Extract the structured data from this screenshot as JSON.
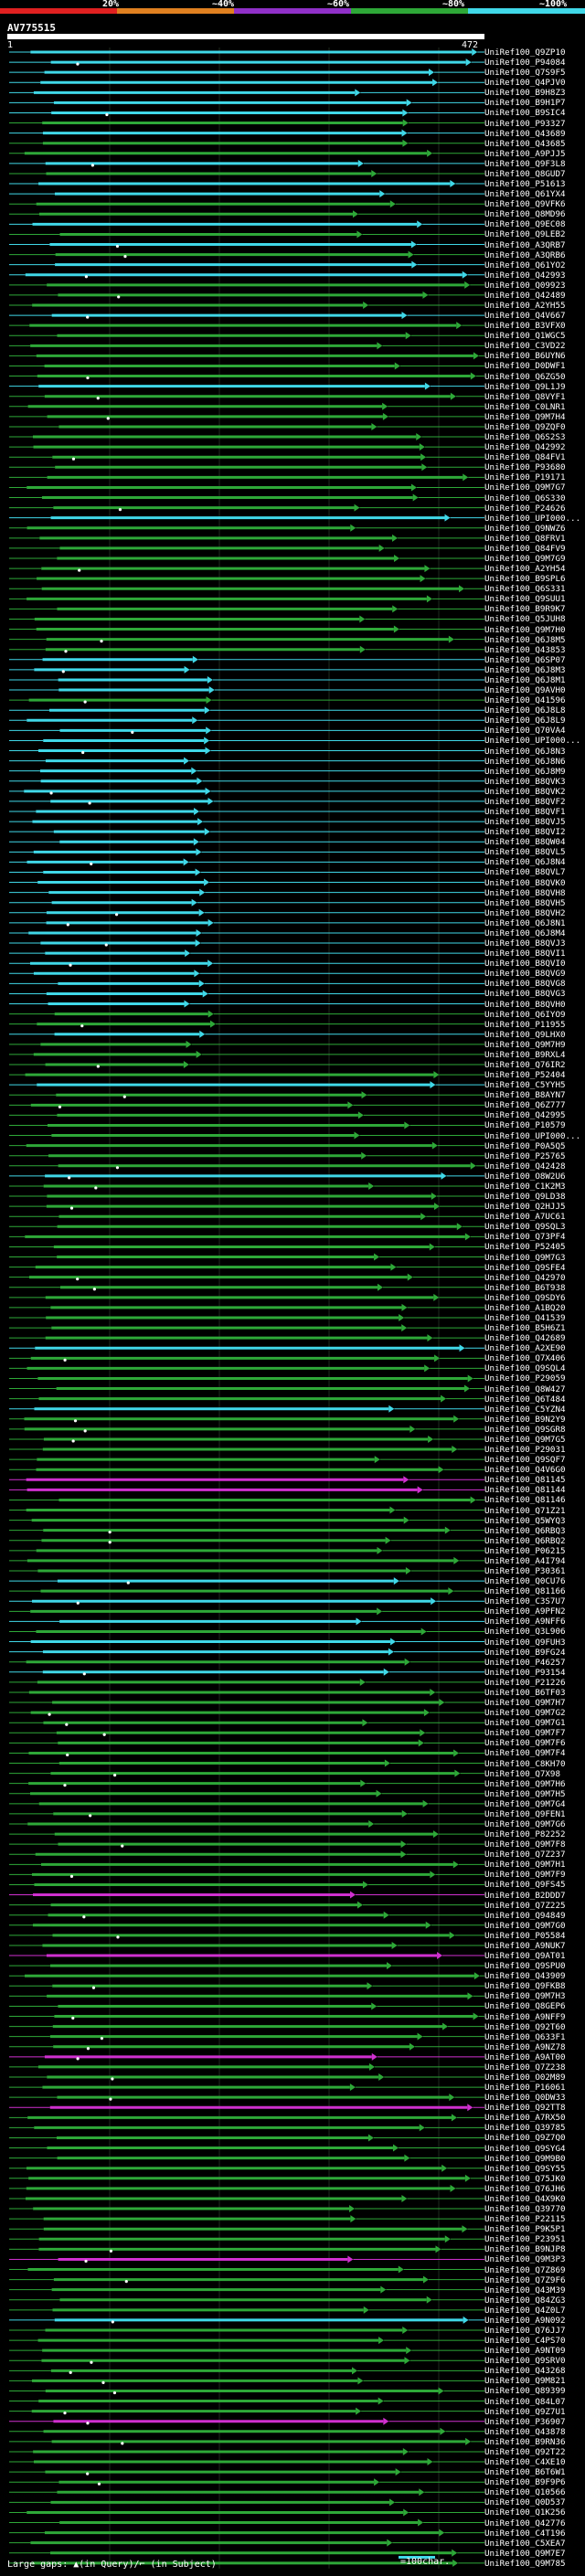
{
  "colors": {
    "background": "#000000",
    "bin_red": "#e02020",
    "bin_orange": "#e08020",
    "bin_purple": "#9030c8",
    "bin_green": "#2ea838",
    "bin_cyan": "#40d8e8",
    "query_bar": "#ffffff",
    "gap_marker": "#ffffff"
  },
  "identity_scale": [
    "20%",
    "~40%",
    "~60%",
    "~80%",
    "~100%"
  ],
  "query": {
    "id": "AV775515",
    "start": "1",
    "end": "472"
  },
  "hits": [
    {
      "label": "UniRef100_Q9ZP10",
      "color": "cyan"
    },
    {
      "label": "UniRef100_P94084",
      "color": "cyan"
    },
    {
      "label": "UniRef100_Q7S9F5",
      "color": "cyan"
    },
    {
      "label": "UniRef100_Q4PJV0",
      "color": "cyan"
    },
    {
      "label": "UniRef100_B9H8Z3",
      "color": "cyan"
    },
    {
      "label": "UniRef100_B9H1P7",
      "color": "cyan"
    },
    {
      "label": "UniRef100_B9SIC4",
      "color": "cyan"
    },
    {
      "label": "UniRef100_P93327",
      "color": "green"
    },
    {
      "label": "UniRef100_Q43689",
      "color": "cyan"
    },
    {
      "label": "UniRef100_Q43685",
      "color": "green"
    },
    {
      "label": "UniRef100_A9PJJ5",
      "color": "green"
    },
    {
      "label": "UniRef100_Q9F3L8",
      "color": "cyan"
    },
    {
      "label": "UniRef100_Q8GUD7",
      "color": "green"
    },
    {
      "label": "UniRef100_P51613",
      "color": "cyan"
    },
    {
      "label": "UniRef100_Q61YX4",
      "color": "cyan"
    },
    {
      "label": "UniRef100_Q9VFK6",
      "color": "green"
    },
    {
      "label": "UniRef100_Q8MD96",
      "color": "green"
    },
    {
      "label": "UniRef100_Q9EC08",
      "color": "cyan"
    },
    {
      "label": "UniRef100_Q9LEB2",
      "color": "green"
    },
    {
      "label": "UniRef100_A3QRB7",
      "color": "cyan"
    },
    {
      "label": "UniRef100_A3QRB6",
      "color": "green"
    },
    {
      "label": "UniRef100_Q61YO2",
      "color": "cyan"
    },
    {
      "label": "UniRef100_Q42993",
      "color": "cyan"
    },
    {
      "label": "UniRef100_Q09923",
      "color": "green"
    },
    {
      "label": "UniRef100_Q42489",
      "color": "green"
    },
    {
      "label": "UniRef100_A2YH55",
      "color": "green"
    },
    {
      "label": "UniRef100_Q4V667",
      "color": "cyan"
    },
    {
      "label": "UniRef100_B3VFX0",
      "color": "green"
    },
    {
      "label": "UniRef100_Q1WGC5",
      "color": "green"
    },
    {
      "label": "UniRef100_C3VD22",
      "color": "green"
    },
    {
      "label": "UniRef100_B6UYN6",
      "color": "green"
    },
    {
      "label": "UniRef100_D0DWF1",
      "color": "green"
    },
    {
      "label": "UniRef100_Q6ZG50",
      "color": "green"
    },
    {
      "label": "UniRef100_Q9L1J9",
      "color": "cyan"
    },
    {
      "label": "UniRef100_Q8VYF1",
      "color": "green"
    },
    {
      "label": "UniRef100_C0LNR1",
      "color": "green"
    },
    {
      "label": "UniRef100_Q9M7H4",
      "color": "green"
    },
    {
      "label": "UniRef100_Q9ZQF0",
      "color": "green"
    },
    {
      "label": "UniRef100_Q6S2S3",
      "color": "green"
    },
    {
      "label": "UniRef100_Q42992",
      "color": "green"
    },
    {
      "label": "UniRef100_Q84FV1",
      "color": "green"
    },
    {
      "label": "UniRef100_P93680",
      "color": "green"
    },
    {
      "label": "UniRef100_P19171",
      "color": "green"
    },
    {
      "label": "UniRef100_Q9M7G7",
      "color": "green"
    },
    {
      "label": "UniRef100_Q6S330",
      "color": "green"
    },
    {
      "label": "UniRef100_P24626",
      "color": "green"
    },
    {
      "label": "UniRef100_UPI000...",
      "color": "cyan"
    },
    {
      "label": "UniRef100_Q9NWZ6",
      "color": "green"
    },
    {
      "label": "UniRef100_Q8FRV1",
      "color": "green"
    },
    {
      "label": "UniRef100_Q84FV9",
      "color": "green"
    },
    {
      "label": "UniRef100_Q9M7G9",
      "color": "green"
    },
    {
      "label": "UniRef100_A2YH54",
      "color": "green"
    },
    {
      "label": "UniRef100_B9SPL6",
      "color": "green"
    },
    {
      "label": "UniRef100_Q6S331",
      "color": "green"
    },
    {
      "label": "UniRef100_Q9SUU1",
      "color": "green"
    },
    {
      "label": "UniRef100_B9R9K7",
      "color": "green"
    },
    {
      "label": "UniRef100_Q5JUH8",
      "color": "green"
    },
    {
      "label": "UniRef100_Q9M7H0",
      "color": "green"
    },
    {
      "label": "UniRef100_Q6J8M5",
      "color": "green"
    },
    {
      "label": "UniRef100_Q43853",
      "color": "green"
    },
    {
      "label": "UniRef100_Q6SP07",
      "color": "cyan"
    },
    {
      "label": "UniRef100_Q6J8M3",
      "color": "cyan"
    },
    {
      "label": "UniRef100_Q6J8M1",
      "color": "cyan"
    },
    {
      "label": "UniRef100_Q9AVH0",
      "color": "cyan"
    },
    {
      "label": "UniRef100_Q41596",
      "color": "green"
    },
    {
      "label": "UniRef100_Q6J8L8",
      "color": "cyan"
    },
    {
      "label": "UniRef100_Q6J8L9",
      "color": "cyan"
    },
    {
      "label": "UniRef100_Q70VA4",
      "color": "cyan"
    },
    {
      "label": "UniRef100_UPI000...",
      "color": "cyan"
    },
    {
      "label": "UniRef100_Q6J8N3",
      "color": "cyan"
    },
    {
      "label": "UniRef100_Q6J8N6",
      "color": "cyan"
    },
    {
      "label": "UniRef100_Q6J8M9",
      "color": "cyan"
    },
    {
      "label": "UniRef100_B8QVK3",
      "color": "cyan"
    },
    {
      "label": "UniRef100_B8QVK2",
      "color": "cyan"
    },
    {
      "label": "UniRef100_B8QVF2",
      "color": "cyan"
    },
    {
      "label": "UniRef100_B8QVF1",
      "color": "cyan"
    },
    {
      "label": "UniRef100_B8QVJ5",
      "color": "cyan"
    },
    {
      "label": "UniRef100_B8QVI2",
      "color": "cyan"
    },
    {
      "label": "UniRef100_B8QW04",
      "color": "cyan"
    },
    {
      "label": "UniRef100_B8QVL5",
      "color": "cyan"
    },
    {
      "label": "UniRef100_Q6J8N4",
      "color": "cyan"
    },
    {
      "label": "UniRef100_B8QVL7",
      "color": "cyan"
    },
    {
      "label": "UniRef100_B8QVK0",
      "color": "cyan"
    },
    {
      "label": "UniRef100_B8QVH8",
      "color": "cyan"
    },
    {
      "label": "UniRef100_B8QVH5",
      "color": "cyan"
    },
    {
      "label": "UniRef100_B8QVH2",
      "color": "cyan"
    },
    {
      "label": "UniRef100_Q6J8N1",
      "color": "cyan"
    },
    {
      "label": "UniRef100_Q6J8M4",
      "color": "cyan"
    },
    {
      "label": "UniRef100_B8QVJ3",
      "color": "cyan"
    },
    {
      "label": "UniRef100_B8QVI1",
      "color": "cyan"
    },
    {
      "label": "UniRef100_B8QVI0",
      "color": "cyan"
    },
    {
      "label": "UniRef100_B8QVG9",
      "color": "cyan"
    },
    {
      "label": "UniRef100_B8QVG8",
      "color": "cyan"
    },
    {
      "label": "UniRef100_B8QVG3",
      "color": "cyan"
    },
    {
      "label": "UniRef100_B8QVH0",
      "color": "cyan"
    },
    {
      "label": "UniRef100_Q6IYO9",
      "color": "green"
    },
    {
      "label": "UniRef100_P11955",
      "color": "green"
    },
    {
      "label": "UniRef100_Q9LHX0",
      "color": "cyan"
    },
    {
      "label": "UniRef100_Q9M7H9",
      "color": "green"
    },
    {
      "label": "UniRef100_B9RXL4",
      "color": "green"
    },
    {
      "label": "UniRef100_Q76IR2",
      "color": "green"
    },
    {
      "label": "UniRef100_P52404",
      "color": "green"
    },
    {
      "label": "UniRef100_C5YYH5",
      "color": "cyan"
    },
    {
      "label": "UniRef100_B8AYN7",
      "color": "green"
    },
    {
      "label": "UniRef100_Q6Z777",
      "color": "green"
    },
    {
      "label": "UniRef100_Q42995",
      "color": "green"
    },
    {
      "label": "UniRef100_P10579",
      "color": "green"
    },
    {
      "label": "UniRef100_UPI000...",
      "color": "green"
    },
    {
      "label": "UniRef100_P0A5Q5",
      "color": "green"
    },
    {
      "label": "UniRef100_P25765",
      "color": "green"
    },
    {
      "label": "UniRef100_Q42428",
      "color": "green"
    },
    {
      "label": "UniRef100_O8W2U6",
      "color": "cyan"
    },
    {
      "label": "UniRef100_C1K2M3",
      "color": "green"
    },
    {
      "label": "UniRef100_Q9LD38",
      "color": "green"
    },
    {
      "label": "UniRef100_Q2HJJ5",
      "color": "green"
    },
    {
      "label": "UniRef100_A7UC61",
      "color": "green"
    },
    {
      "label": "UniRef100_Q9SQL3",
      "color": "green"
    },
    {
      "label": "UniRef100_Q73PF4",
      "color": "green"
    },
    {
      "label": "UniRef100_P52405",
      "color": "green"
    },
    {
      "label": "UniRef100_Q9M7G3",
      "color": "green"
    },
    {
      "label": "UniRef100_Q9SFE4",
      "color": "green"
    },
    {
      "label": "UniRef100_Q42970",
      "color": "green"
    },
    {
      "label": "UniRef100_B6T938",
      "color": "green"
    },
    {
      "label": "UniRef100_Q9SDY6",
      "color": "green"
    },
    {
      "label": "UniRef100_A1BQ20",
      "color": "green"
    },
    {
      "label": "UniRef100_Q41539",
      "color": "green"
    },
    {
      "label": "UniRef100_B5H6Z1",
      "color": "green"
    },
    {
      "label": "UniRef100_Q42689",
      "color": "green"
    },
    {
      "label": "UniRef100_A2XE90",
      "color": "cyan"
    },
    {
      "label": "UniRef100_Q7X406",
      "color": "green"
    },
    {
      "label": "UniRef100_Q9SQL4",
      "color": "green"
    },
    {
      "label": "UniRef100_P29059",
      "color": "green"
    },
    {
      "label": "UniRef100_Q8W427",
      "color": "green"
    },
    {
      "label": "UniRef100_Q6T484",
      "color": "green"
    },
    {
      "label": "UniRef100_C5YZN4",
      "color": "cyan"
    },
    {
      "label": "UniRef100_B9N2Y9",
      "color": "green"
    },
    {
      "label": "UniRef100_Q9SGR8",
      "color": "green"
    },
    {
      "label": "UniRef100_Q9M7G5",
      "color": "green"
    },
    {
      "label": "UniRef100_P29031",
      "color": "green"
    },
    {
      "label": "UniRef100_Q9SQF7",
      "color": "green"
    },
    {
      "label": "UniRef100_Q4V6G0",
      "color": "green"
    },
    {
      "label": "UniRef100_Q81145",
      "color": "magenta"
    },
    {
      "label": "UniRef100_Q81144",
      "color": "magenta"
    },
    {
      "label": "UniRef100_Q81146",
      "color": "green"
    },
    {
      "label": "UniRef100_Q71Z21",
      "color": "green"
    },
    {
      "label": "UniRef100_Q5WYQ3",
      "color": "green"
    },
    {
      "label": "UniRef100_Q6RBQ3",
      "color": "green"
    },
    {
      "label": "UniRef100_Q6RBQ2",
      "color": "green"
    },
    {
      "label": "UniRef100_P06215",
      "color": "green"
    },
    {
      "label": "UniRef100_A4I794",
      "color": "green"
    },
    {
      "label": "UniRef100_P30361",
      "color": "green"
    },
    {
      "label": "UniRef100_Q0CU76",
      "color": "cyan"
    },
    {
      "label": "UniRef100_Q81166",
      "color": "green"
    },
    {
      "label": "UniRef100_C3S7U7",
      "color": "cyan"
    },
    {
      "label": "UniRef100_A9PFN2",
      "color": "green"
    },
    {
      "label": "UniRef100_A9NFF6",
      "color": "cyan"
    },
    {
      "label": "UniRef100_Q3L906",
      "color": "green"
    },
    {
      "label": "UniRef100_Q9FUH3",
      "color": "cyan"
    },
    {
      "label": "UniRef100_B9FG24",
      "color": "cyan"
    },
    {
      "label": "UniRef100_P46257",
      "color": "green"
    },
    {
      "label": "UniRef100_P93154",
      "color": "cyan"
    },
    {
      "label": "UniRef100_P21226",
      "color": "green"
    },
    {
      "label": "UniRef100_B6TF03",
      "color": "green"
    },
    {
      "label": "UniRef100_Q9M7H7",
      "color": "green"
    },
    {
      "label": "UniRef100_Q9M7G2",
      "color": "green"
    },
    {
      "label": "UniRef100_Q9M7G1",
      "color": "green"
    },
    {
      "label": "UniRef100_Q9M7F7",
      "color": "green"
    },
    {
      "label": "UniRef100_Q9M7F6",
      "color": "green"
    },
    {
      "label": "UniRef100_Q9M7F4",
      "color": "green"
    },
    {
      "label": "UniRef100_C8KH70",
      "color": "green"
    },
    {
      "label": "UniRef100_Q7X98",
      "color": "green"
    },
    {
      "label": "UniRef100_Q9M7H6",
      "color": "green"
    },
    {
      "label": "UniRef100_Q9M7H5",
      "color": "green"
    },
    {
      "label": "UniRef100_Q9M7G4",
      "color": "green"
    },
    {
      "label": "UniRef100_Q9FEN1",
      "color": "green"
    },
    {
      "label": "UniRef100_Q9M7G6",
      "color": "green"
    },
    {
      "label": "UniRef100_P82252",
      "color": "green"
    },
    {
      "label": "UniRef100_Q9M7F8",
      "color": "green"
    },
    {
      "label": "UniRef100_Q7Z237",
      "color": "green"
    },
    {
      "label": "UniRef100_Q9M7H1",
      "color": "green"
    },
    {
      "label": "UniRef100_Q9M7F9",
      "color": "green"
    },
    {
      "label": "UniRef100_Q9FS45",
      "color": "green"
    },
    {
      "label": "UniRef100_B2DDD7",
      "color": "magenta"
    },
    {
      "label": "UniRef100_Q7Z225",
      "color": "green"
    },
    {
      "label": "UniRef100_Q94849",
      "color": "green"
    },
    {
      "label": "UniRef100_Q9M7G0",
      "color": "green"
    },
    {
      "label": "UniRef100_P05584",
      "color": "green"
    },
    {
      "label": "UniRef100_A9NUK7",
      "color": "green"
    },
    {
      "label": "UniRef100_Q9AT01",
      "color": "magenta"
    },
    {
      "label": "UniRef100_Q9SPU0",
      "color": "green"
    },
    {
      "label": "UniRef100_Q43909",
      "color": "green"
    },
    {
      "label": "UniRef100_Q9FKB8",
      "color": "green"
    },
    {
      "label": "UniRef100_Q9M7H3",
      "color": "green"
    },
    {
      "label": "UniRef100_Q8GEP6",
      "color": "green"
    },
    {
      "label": "UniRef100_A9NFF9",
      "color": "green"
    },
    {
      "label": "UniRef100_Q92T60",
      "color": "green"
    },
    {
      "label": "UniRef100_Q633F1",
      "color": "green"
    },
    {
      "label": "UniRef100_A9NZ78",
      "color": "green"
    },
    {
      "label": "UniRef100_A9AT00",
      "color": "magenta"
    },
    {
      "label": "UniRef100_Q7Z238",
      "color": "green"
    },
    {
      "label": "UniRef100_O02M89",
      "color": "green"
    },
    {
      "label": "UniRef100_P16061",
      "color": "green"
    },
    {
      "label": "UniRef100_Q0DW33",
      "color": "green"
    },
    {
      "label": "UniRef100_Q92TT8",
      "color": "magenta"
    },
    {
      "label": "UniRef100_A7RX50",
      "color": "green"
    },
    {
      "label": "UniRef100_Q39785",
      "color": "green"
    },
    {
      "label": "UniRef100_Q9Z7Q0",
      "color": "green"
    },
    {
      "label": "UniRef100_Q9SYG4",
      "color": "green"
    },
    {
      "label": "UniRef100_Q9M9B0",
      "color": "green"
    },
    {
      "label": "UniRef100_Q9SY55",
      "color": "green"
    },
    {
      "label": "UniRef100_Q75JK0",
      "color": "green"
    },
    {
      "label": "UniRef100_Q76JH6",
      "color": "green"
    },
    {
      "label": "UniRef100_Q4X9K0",
      "color": "green"
    },
    {
      "label": "UniRef100_Q39770",
      "color": "green"
    },
    {
      "label": "UniRef100_P22115",
      "color": "green"
    },
    {
      "label": "UniRef100_P9K5P1",
      "color": "green"
    },
    {
      "label": "UniRef100_P23951",
      "color": "green"
    },
    {
      "label": "UniRef100_B9NJP8",
      "color": "green"
    },
    {
      "label": "UniRef100_Q9M3P3",
      "color": "magenta"
    },
    {
      "label": "UniRef100_Q7Z869",
      "color": "green"
    },
    {
      "label": "UniRef100_Q7Z9F6",
      "color": "green"
    },
    {
      "label": "UniRef100_Q43M39",
      "color": "green"
    },
    {
      "label": "UniRef100_Q84ZG3",
      "color": "green"
    },
    {
      "label": "UniRef100_Q4Z0L7",
      "color": "green"
    },
    {
      "label": "UniRef100_A9N092",
      "color": "cyan"
    },
    {
      "label": "UniRef100_Q76JJ7",
      "color": "green"
    },
    {
      "label": "UniRef100_C4PS70",
      "color": "green"
    },
    {
      "label": "UniRef100_A9NT09",
      "color": "green"
    },
    {
      "label": "UniRef100_Q9SRV0",
      "color": "green"
    },
    {
      "label": "UniRef100_Q43268",
      "color": "green"
    },
    {
      "label": "UniRef100_Q9M821",
      "color": "green"
    },
    {
      "label": "UniRef100_Q89399",
      "color": "green"
    },
    {
      "label": "UniRef100_Q84L07",
      "color": "green"
    },
    {
      "label": "UniRef100_Q9Z7U1",
      "color": "green"
    },
    {
      "label": "UniRef100_P36907",
      "color": "magenta"
    },
    {
      "label": "UniRef100_Q43878",
      "color": "green"
    },
    {
      "label": "UniRef100_B9RN36",
      "color": "green"
    },
    {
      "label": "UniRef100_Q92T22",
      "color": "green"
    },
    {
      "label": "UniRef100_C4XE10",
      "color": "green"
    },
    {
      "label": "UniRef100_B6T6W1",
      "color": "green"
    },
    {
      "label": "UniRef100_B9F9P6",
      "color": "green"
    },
    {
      "label": "UniRef100_Q10566",
      "color": "green"
    },
    {
      "label": "UniRef100_Q0D537",
      "color": "green"
    },
    {
      "label": "UniRef100_Q1K256",
      "color": "green"
    },
    {
      "label": "UniRef100_Q42776",
      "color": "green"
    },
    {
      "label": "UniRef100_C4T196",
      "color": "green"
    },
    {
      "label": "UniRef100_C5XEA7",
      "color": "green"
    },
    {
      "label": "UniRef100_Q9M7E7",
      "color": "green"
    },
    {
      "label": "UniRef100_Q9M785",
      "color": "green"
    }
  ],
  "legend": {
    "gaps_text": "Large gaps: ▲(in Query)/⌐ (in Subject)",
    "scale_text": "=100char."
  }
}
